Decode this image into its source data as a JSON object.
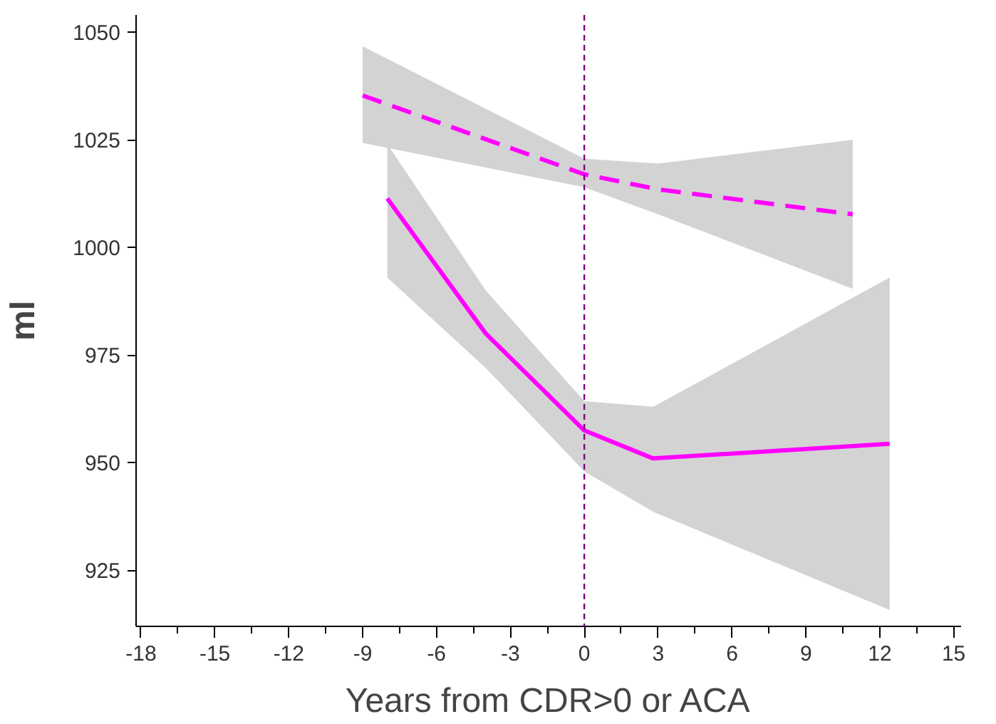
{
  "chart_data": {
    "type": "line",
    "xlabel": "Years from CDR>0 or ACA",
    "ylabel": "ml",
    "xlim": [
      -18.2,
      15.3
    ],
    "ylim": [
      912,
      1054
    ],
    "xticks": [
      -18,
      -15,
      -12,
      -9,
      -6,
      -3,
      0,
      3,
      6,
      9,
      12,
      15
    ],
    "yticks": [
      925,
      950,
      975,
      1000,
      1025,
      1050
    ],
    "grid": false,
    "marker": "none",
    "ref_lines": [
      {
        "axis": "x",
        "value": 0,
        "label": null,
        "color": "#800080",
        "line_style": "dashed"
      }
    ],
    "series": [
      {
        "color": "#ff00ff",
        "line_style": "dashed",
        "x": [
          -9,
          0,
          3,
          10.9
        ],
        "values": [
          1035.3,
          1017,
          1013.5,
          1007.7
        ],
        "lower": [
          1024.3,
          1014,
          1007.7,
          990.4
        ],
        "upper": [
          1046.7,
          1020.6,
          1019.5,
          1025
        ]
      },
      {
        "color": "#ff00ff",
        "line_style": "solid",
        "x": [
          -8,
          -4,
          0,
          2.8,
          12.4
        ],
        "values": [
          1011.4,
          980,
          957.5,
          951,
          954.4
        ],
        "lower": [
          993,
          972,
          948,
          938.6,
          915.8
        ],
        "upper": [
          1024,
          990,
          964.3,
          963,
          993
        ]
      }
    ]
  }
}
